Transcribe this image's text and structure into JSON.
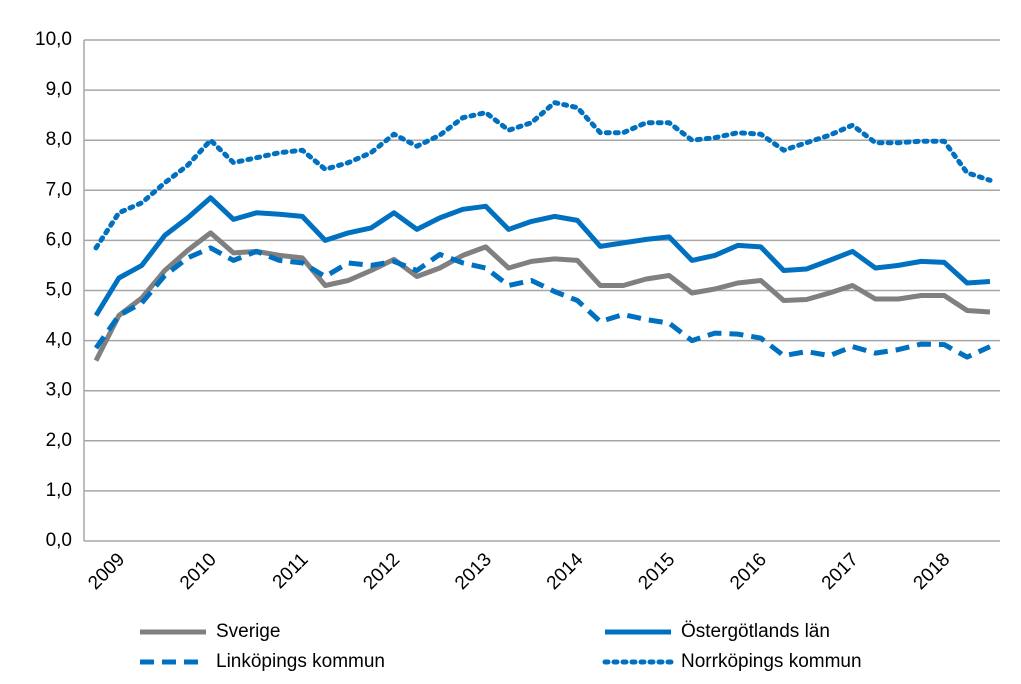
{
  "chart_data": {
    "type": "line",
    "categories": [
      "2009",
      null,
      null,
      null,
      "2010",
      null,
      null,
      null,
      "2011",
      null,
      null,
      null,
      "2012",
      null,
      null,
      null,
      "2013",
      null,
      null,
      null,
      "2014",
      null,
      null,
      null,
      "2015",
      null,
      null,
      null,
      "2016",
      null,
      null,
      null,
      "2017",
      null,
      null,
      null,
      "2018",
      null,
      null,
      null
    ],
    "series": [
      {
        "name": "Sverige",
        "color": "#808080",
        "style": "solid",
        "values": [
          3.6,
          4.5,
          4.85,
          5.4,
          5.8,
          6.15,
          5.75,
          5.78,
          5.7,
          5.65,
          5.1,
          5.2,
          5.4,
          5.62,
          5.28,
          5.45,
          5.7,
          5.87,
          5.45,
          5.58,
          5.63,
          5.6,
          5.1,
          5.1,
          5.23,
          5.3,
          4.95,
          5.03,
          5.15,
          5.2,
          4.8,
          4.82,
          4.95,
          5.1,
          4.83,
          4.83,
          4.9,
          4.9,
          4.6,
          4.57
        ]
      },
      {
        "name": "Östergötlands län",
        "color": "#0070c0",
        "style": "solid",
        "values": [
          4.5,
          5.25,
          5.5,
          6.1,
          6.45,
          6.85,
          6.42,
          6.55,
          6.52,
          6.48,
          6.0,
          6.15,
          6.25,
          6.55,
          6.22,
          6.45,
          6.62,
          6.68,
          6.22,
          6.38,
          6.48,
          6.4,
          5.88,
          5.95,
          6.02,
          6.07,
          5.6,
          5.7,
          5.9,
          5.87,
          5.4,
          5.43,
          5.6,
          5.78,
          5.45,
          5.5,
          5.58,
          5.56,
          5.15,
          5.18
        ]
      },
      {
        "name": "Linköpings kommun",
        "color": "#0070c0",
        "style": "dashed",
        "values": [
          3.85,
          4.5,
          4.75,
          5.3,
          5.65,
          5.85,
          5.6,
          5.78,
          5.6,
          5.55,
          5.28,
          5.55,
          5.5,
          5.58,
          5.4,
          5.72,
          5.55,
          5.45,
          5.1,
          5.2,
          4.98,
          4.8,
          4.38,
          4.52,
          4.42,
          4.35,
          4.0,
          4.15,
          4.13,
          4.05,
          3.7,
          3.78,
          3.7,
          3.88,
          3.75,
          3.82,
          3.93,
          3.92,
          3.67,
          3.88
        ]
      },
      {
        "name": "Norrköpings kommun",
        "color": "#0070c0",
        "style": "dotted",
        "values": [
          5.85,
          6.55,
          6.75,
          7.15,
          7.5,
          8.0,
          7.55,
          7.65,
          7.75,
          7.8,
          7.42,
          7.55,
          7.75,
          8.12,
          7.88,
          8.1,
          8.45,
          8.55,
          8.2,
          8.35,
          8.75,
          8.65,
          8.15,
          8.15,
          8.35,
          8.35,
          8.0,
          8.05,
          8.15,
          8.12,
          7.8,
          7.95,
          8.1,
          8.3,
          7.95,
          7.95,
          7.98,
          7.98,
          7.35,
          7.2
        ]
      }
    ],
    "ylim": [
      0,
      10
    ],
    "yticks": [
      {
        "value": 0,
        "label": "0,0"
      },
      {
        "value": 1,
        "label": "1,0"
      },
      {
        "value": 2,
        "label": "2,0"
      },
      {
        "value": 3,
        "label": "3,0"
      },
      {
        "value": 4,
        "label": "4,0"
      },
      {
        "value": 5,
        "label": "5,0"
      },
      {
        "value": 6,
        "label": "6,0"
      },
      {
        "value": 7,
        "label": "7,0"
      },
      {
        "value": 8,
        "label": "8,0"
      },
      {
        "value": 9,
        "label": "9,0"
      },
      {
        "value": 10,
        "label": "10,0"
      }
    ],
    "grid": true
  }
}
